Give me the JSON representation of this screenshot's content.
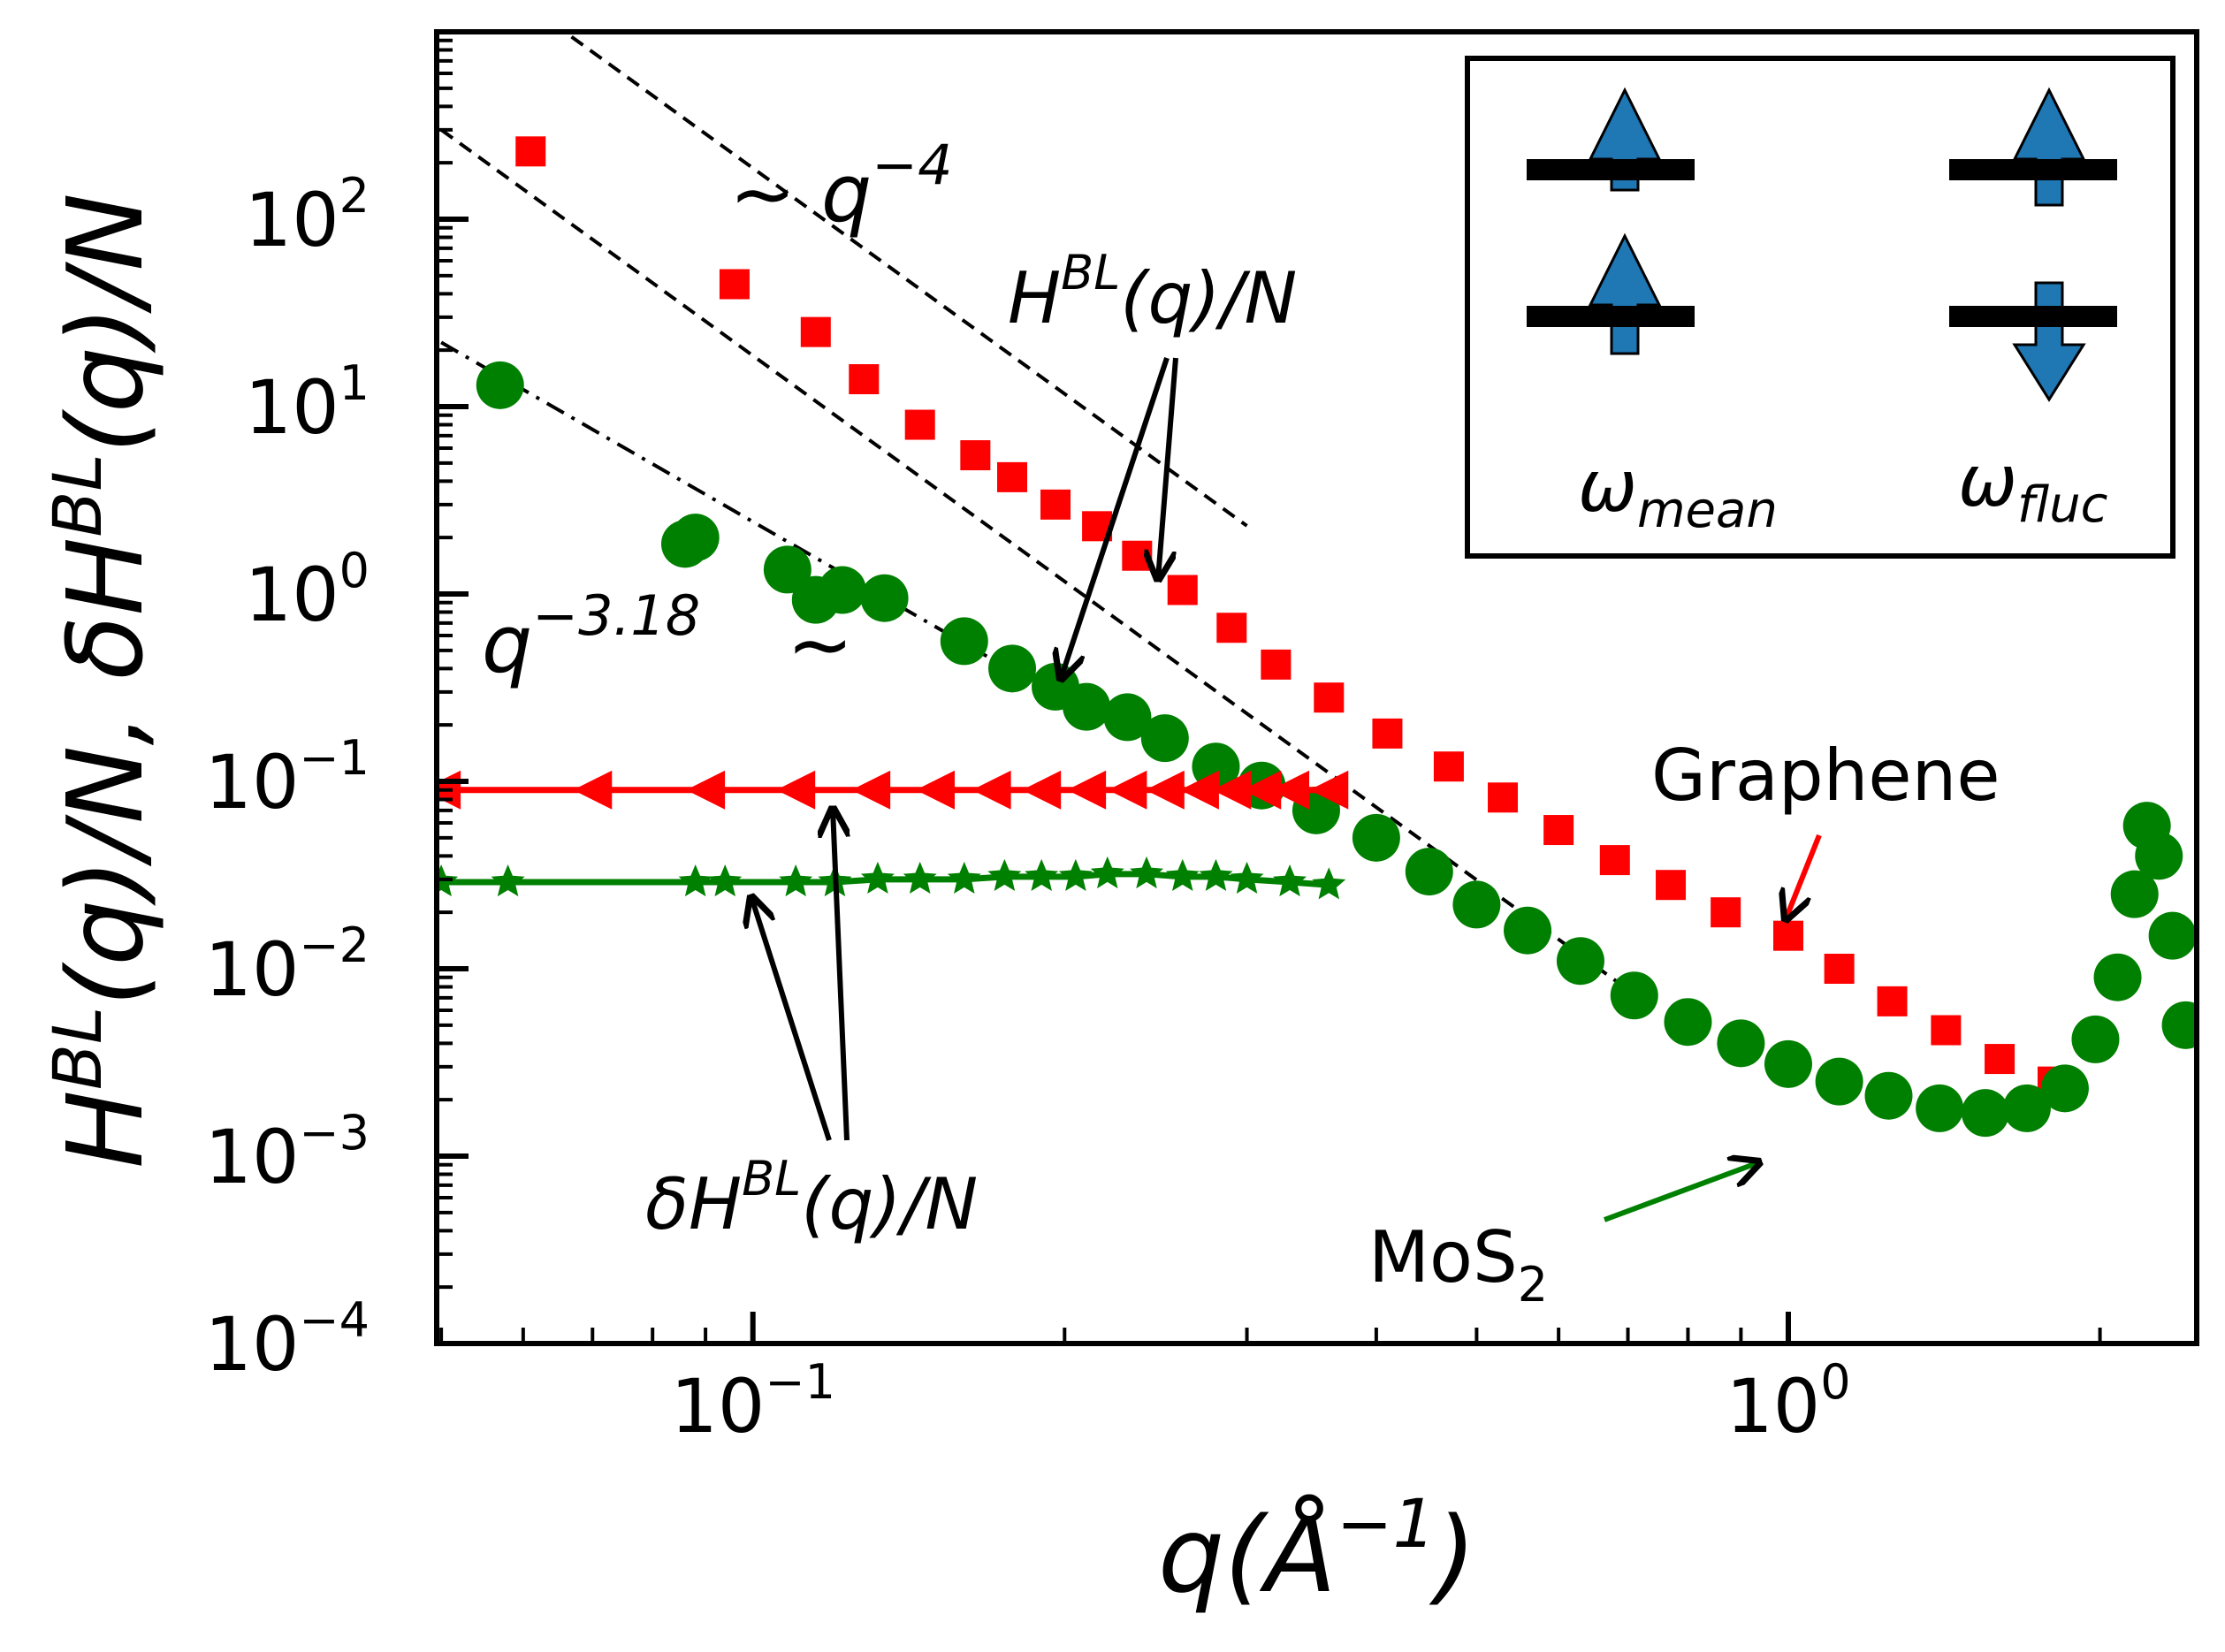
{
  "chart_data": {
    "type": "scatter",
    "xscale": "log",
    "yscale": "log",
    "xlim": [
      0.0495,
      2.48
    ],
    "ylim": [
      0.0001,
      1000
    ],
    "xlabel": "q(Å⁻¹)",
    "ylabel": "H^BL(q)/N, δH^BL(q)/N",
    "x_ticks": [
      {
        "value": 0.1,
        "base": "10",
        "exp": "−1"
      },
      {
        "value": 1.0,
        "base": "10",
        "exp": "0"
      }
    ],
    "y_ticks": [
      {
        "value": 100,
        "base": "10",
        "exp": "2"
      },
      {
        "value": 10,
        "base": "10",
        "exp": "1"
      },
      {
        "value": 1,
        "base": "10",
        "exp": "0"
      },
      {
        "value": 0.1,
        "base": "10",
        "exp": "−1"
      },
      {
        "value": 0.01,
        "base": "10",
        "exp": "−2"
      },
      {
        "value": 0.001,
        "base": "10",
        "exp": "−3"
      },
      {
        "value": 0.0001,
        "base": "10",
        "exp": "−4"
      }
    ],
    "series": [
      {
        "name": "Graphene H^BL(q)/N",
        "color": "#ff0000",
        "marker": "square",
        "x": [
          0.061,
          0.096,
          0.115,
          0.128,
          0.145,
          0.164,
          0.178,
          0.196,
          0.215,
          0.235,
          0.26,
          0.29,
          0.32,
          0.36,
          0.41,
          0.47,
          0.53,
          0.6,
          0.68,
          0.77,
          0.87,
          1.0,
          1.12,
          1.26,
          1.42,
          1.6,
          1.8
        ],
        "y": [
          230,
          45,
          25,
          14,
          8,
          5.5,
          4.2,
          3,
          2.3,
          1.6,
          1.05,
          0.66,
          0.42,
          0.28,
          0.18,
          0.12,
          0.082,
          0.055,
          0.038,
          0.028,
          0.02,
          0.015,
          0.01,
          0.0067,
          0.0047,
          0.0033,
          0.0025
        ]
      },
      {
        "name": "MoS2 H^BL(q)/N",
        "color": "#008000",
        "marker": "circle",
        "x": [
          0.057,
          0.086,
          0.088,
          0.108,
          0.115,
          0.122,
          0.134,
          0.16,
          0.178,
          0.196,
          0.21,
          0.23,
          0.25,
          0.28,
          0.31,
          0.35,
          0.4,
          0.45,
          0.5,
          0.56,
          0.63,
          0.71,
          0.8,
          0.9,
          1.0,
          1.12,
          1.25,
          1.4,
          1.55,
          1.7,
          1.85,
          1.98,
          2.08,
          2.16,
          2.22,
          2.28,
          2.35,
          2.42
        ],
        "y": [
          13,
          1.85,
          2.0,
          1.35,
          0.93,
          1.05,
          0.95,
          0.56,
          0.4,
          0.32,
          0.25,
          0.22,
          0.17,
          0.12,
          0.095,
          0.07,
          0.05,
          0.033,
          0.022,
          0.016,
          0.011,
          0.0072,
          0.0052,
          0.004,
          0.0031,
          0.0025,
          0.0021,
          0.0018,
          0.0017,
          0.0018,
          0.0023,
          0.0042,
          0.009,
          0.025,
          0.058,
          0.04,
          0.015,
          0.005
        ]
      },
      {
        "name": "Graphene δH^BL(q)/N",
        "color": "#ff0000",
        "marker": "triangle-left",
        "line": true,
        "x": [
          0.05,
          0.07,
          0.09,
          0.11,
          0.13,
          0.15,
          0.17,
          0.19,
          0.21,
          0.23,
          0.25,
          0.27,
          0.29,
          0.31,
          0.33,
          0.36
        ],
        "y": [
          0.09,
          0.09,
          0.09,
          0.09,
          0.09,
          0.09,
          0.09,
          0.09,
          0.09,
          0.09,
          0.09,
          0.09,
          0.09,
          0.09,
          0.09,
          0.09
        ]
      },
      {
        "name": "MoS2 δH^BL(q)/N",
        "color": "#008000",
        "marker": "star",
        "line": true,
        "x": [
          0.05,
          0.058,
          0.088,
          0.094,
          0.11,
          0.12,
          0.132,
          0.145,
          0.16,
          0.175,
          0.19,
          0.205,
          0.22,
          0.24,
          0.26,
          0.28,
          0.3,
          0.33,
          0.36
        ],
        "y": [
          0.029,
          0.029,
          0.029,
          0.029,
          0.029,
          0.029,
          0.03,
          0.03,
          0.03,
          0.031,
          0.031,
          0.031,
          0.032,
          0.032,
          0.031,
          0.031,
          0.03,
          0.029,
          0.028
        ]
      }
    ],
    "reference_lines": [
      {
        "name": "q^-4 upper",
        "style": "dashed",
        "x": [
          0.05,
          0.3
        ],
        "y": [
          3000,
          2.31
        ]
      },
      {
        "name": "q^-4 lower",
        "style": "dashed",
        "x": [
          0.05,
          0.69
        ],
        "y": [
          300,
          0.0082
        ]
      },
      {
        "name": "q^-3.18",
        "style": "dashdot",
        "x": [
          0.05,
          0.17
        ],
        "y": [
          22,
          0.45
        ]
      }
    ],
    "annotations": {
      "q4": {
        "prefix": "~ q",
        "exp": "−4"
      },
      "q318": {
        "prefix": "q",
        "exp": "−3.18",
        "tilde": "~"
      },
      "H_label": {
        "a": "H",
        "sup": "BL",
        "b": "(q)/N"
      },
      "dH_label": {
        "a": "δH",
        "sup": "BL",
        "b": "(q)/N"
      },
      "graphene": "Graphene",
      "mos2": {
        "a": "MoS",
        "sub": "2"
      }
    },
    "legend": {
      "position": "top-right",
      "mean_label": {
        "sym": "ω",
        "sub": "mean"
      },
      "fluc_label": {
        "sym": "ω",
        "sub": "fluc"
      },
      "arrow_color": "#1f77b4"
    }
  }
}
